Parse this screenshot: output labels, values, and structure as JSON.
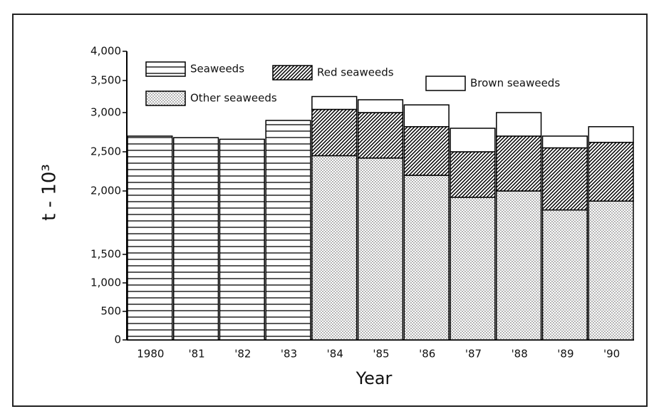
{
  "chart_data": {
    "type": "stacked_bar",
    "y_label": "t - 10³",
    "x_label": "Year",
    "categories": [
      "1980",
      "'81",
      "'82",
      "'83",
      "'84",
      "'85",
      "'86",
      "'87",
      "'88",
      "'89",
      "'90"
    ],
    "series": [
      {
        "name": "Seaweeds",
        "color": "#000000",
        "values": [
          2700,
          2680,
          2660,
          2900,
          null,
          null,
          null,
          null,
          null,
          null,
          null
        ]
      },
      {
        "name": "Other seaweeds",
        "color": "#000000",
        "values": [
          null,
          null,
          null,
          null,
          2450,
          2420,
          2200,
          1950,
          2000,
          1850,
          1920
        ]
      },
      {
        "name": "Red seaweeds",
        "color": "#000000",
        "values": [
          null,
          null,
          null,
          null,
          600,
          580,
          620,
          550,
          700,
          700,
          700
        ]
      },
      {
        "name": "Brown seaweeds",
        "color": "#000000",
        "values": [
          null,
          null,
          null,
          null,
          200,
          200,
          300,
          300,
          300,
          150,
          200
        ]
      }
    ],
    "ylim": [
      0,
      4000
    ],
    "yticks": [
      0,
      500,
      {
        "value": 1000,
        "label": "1,000"
      },
      {
        "value": 1500,
        "label": "1,500"
      },
      {
        "value": 2000,
        "label": "2,000"
      },
      {
        "value": 2500,
        "label": "2,500"
      },
      {
        "value": 3000,
        "label": "3,000"
      },
      {
        "value": 3500,
        "label": "3,500"
      },
      {
        "value": 4000,
        "label": "4,000"
      }
    ]
  }
}
